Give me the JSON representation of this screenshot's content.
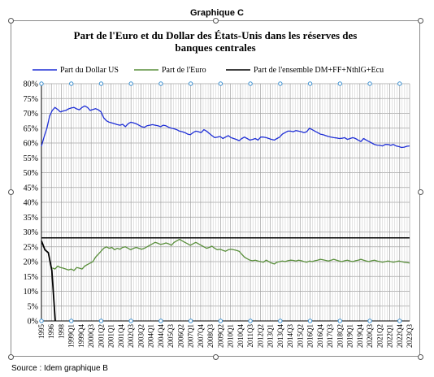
{
  "header_label": "Graphique C",
  "source": "Source : Idem graphique B",
  "chart_data": {
    "type": "line",
    "title": "Part de l'Euro et du Dollar des États-Unis dans les réserves des banques centrales",
    "title_lines": [
      "Part de l'Euro et du Dollar des États-Unis dans les réserves des",
      "banques centrales"
    ],
    "xlabel": "",
    "ylabel": "",
    "ylim": [
      0,
      80
    ],
    "yticks": [
      "0%",
      "5%",
      "10%",
      "15%",
      "20%",
      "25%",
      "30%",
      "35%",
      "40%",
      "45%",
      "50%",
      "55%",
      "60%",
      "65%",
      "70%",
      "75%",
      "80%"
    ],
    "grid": true,
    "legend_position": "top",
    "x_tick_labels": [
      "1995",
      "1996",
      "1998",
      "1999Q1",
      "1999Q4",
      "2000Q3",
      "2001Q2",
      "2001Q1",
      "2001Q4",
      "2002Q3",
      "2003Q2",
      "2004Q1",
      "2004Q4",
      "2005Q3",
      "2006Q2",
      "2007Q1",
      "2007Q4",
      "2008Q3",
      "2009Q2",
      "2010Q1",
      "2010Q4",
      "2011Q3",
      "2012Q2",
      "2013Q1",
      "2013Q4",
      "2014Q3",
      "2015Q2",
      "2016Q1",
      "2016Q4",
      "2017Q3",
      "2018Q2",
      "2019Q1",
      "2019Q4",
      "2020Q3",
      "2021Q2",
      "2022Q1",
      "2022Q4",
      "2023Q3"
    ],
    "colors": {
      "dollar": "#1f2fd6",
      "euro": "#5a8f3c",
      "ensemble": "#000000",
      "grid": "#a0a0a0"
    },
    "series": [
      {
        "name": "Part du Dollar US",
        "color": "#1f2fd6",
        "values": [
          58.9,
          62.1,
          65.0,
          69.0,
          71.0,
          72.0,
          71.3,
          70.5,
          70.8,
          71.0,
          71.5,
          71.8,
          72.0,
          71.5,
          71.2,
          72.0,
          72.5,
          72.0,
          71.0,
          71.3,
          71.6,
          71.2,
          70.5,
          68.5,
          67.5,
          67.0,
          66.8,
          66.5,
          66.2,
          66.0,
          66.3,
          65.5,
          66.5,
          67.0,
          66.8,
          66.5,
          66.0,
          65.5,
          65.3,
          65.8,
          66.0,
          66.2,
          66.0,
          65.8,
          65.5,
          66.0,
          65.8,
          65.3,
          65.0,
          64.8,
          64.5,
          64.0,
          63.8,
          63.5,
          63.0,
          62.8,
          63.5,
          64.0,
          63.8,
          63.5,
          64.5,
          64.0,
          63.2,
          62.5,
          61.8,
          62.0,
          62.2,
          61.5,
          62.0,
          62.5,
          61.8,
          61.5,
          61.2,
          60.8,
          61.5,
          62.0,
          61.5,
          61.0,
          61.2,
          61.5,
          61.0,
          62.0,
          62.0,
          61.8,
          61.5,
          61.2,
          61.0,
          61.5,
          62.0,
          63.0,
          63.5,
          64.0,
          64.0,
          63.8,
          64.2,
          64.0,
          63.8,
          63.5,
          63.8,
          65.0,
          64.5,
          64.0,
          63.5,
          63.0,
          62.8,
          62.5,
          62.2,
          62.0,
          61.8,
          61.7,
          61.5,
          61.6,
          61.8,
          61.2,
          61.5,
          61.8,
          61.5,
          61.0,
          60.5,
          61.5,
          61.0,
          60.5,
          60.0,
          59.5,
          59.3,
          59.2,
          59.0,
          59.5,
          59.5,
          59.2,
          59.5,
          59.0,
          58.8,
          58.5,
          58.6,
          58.9,
          59.0
        ]
      },
      {
        "name": "Part de l'Euro",
        "color": "#5a8f3c",
        "values": [
          null,
          null,
          null,
          null,
          17.9,
          17.5,
          18.5,
          18.0,
          17.8,
          17.5,
          17.2,
          17.5,
          17.0,
          18.0,
          17.8,
          17.5,
          18.5,
          19.0,
          19.5,
          20.0,
          21.5,
          22.5,
          23.5,
          24.5,
          25.0,
          24.5,
          24.8,
          24.0,
          24.5,
          24.2,
          24.8,
          25.0,
          24.5,
          24.0,
          24.5,
          24.8,
          24.5,
          24.2,
          24.5,
          25.0,
          25.5,
          26.0,
          26.5,
          26.2,
          25.8,
          26.0,
          26.3,
          26.0,
          25.5,
          26.5,
          27.0,
          27.5,
          27.0,
          26.5,
          26.0,
          25.5,
          26.0,
          26.5,
          26.0,
          25.5,
          25.0,
          24.5,
          24.8,
          25.2,
          24.5,
          24.0,
          24.2,
          23.8,
          23.5,
          24.0,
          24.2,
          24.0,
          23.8,
          23.5,
          22.5,
          21.5,
          21.0,
          20.5,
          20.3,
          20.5,
          20.2,
          20.0,
          19.8,
          20.5,
          20.0,
          19.5,
          19.2,
          19.8,
          20.0,
          20.2,
          20.0,
          20.3,
          20.5,
          20.4,
          20.2,
          20.5,
          20.3,
          20.0,
          19.8,
          20.2,
          20.0,
          20.3,
          20.5,
          20.8,
          20.6,
          20.4,
          20.2,
          20.5,
          20.8,
          20.5,
          20.2,
          20.0,
          20.3,
          20.5,
          20.2,
          20.0,
          20.3,
          20.5,
          20.8,
          20.5,
          20.2,
          20.0,
          20.3,
          20.5,
          20.2,
          20.0,
          19.8,
          20.0,
          20.2,
          20.0,
          19.8,
          20.0,
          20.2,
          20.0,
          19.8,
          19.7,
          19.5
        ]
      },
      {
        "name": "Part de l'ensemble DM+FF+NthlG+Ecu",
        "color": "#000000",
        "values": [
          27.0,
          24.0,
          23.0,
          17.0,
          0.0
        ]
      }
    ],
    "reference_line": {
      "value": 28,
      "color": "#000000"
    }
  }
}
